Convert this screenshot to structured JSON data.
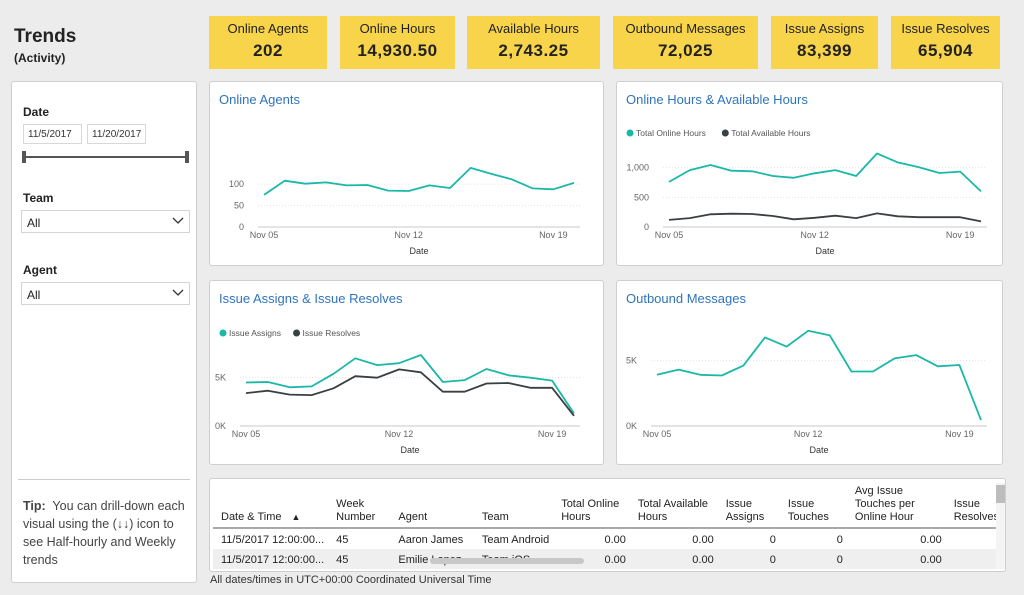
{
  "header": {
    "title": "Trends",
    "subtitle": "(Activity)"
  },
  "kpis": [
    {
      "label": "Online Agents",
      "value": "202"
    },
    {
      "label": "Online Hours",
      "value": "14,930.50"
    },
    {
      "label": "Available Hours",
      "value": "2,743.25"
    },
    {
      "label": "Outbound Messages",
      "value": "72,025"
    },
    {
      "label": "Issue Assigns",
      "value": "83,399"
    },
    {
      "label": "Issue Resolves",
      "value": "65,904"
    }
  ],
  "slicers": {
    "date_label": "Date",
    "date_start": "11/5/2017",
    "date_end": "11/20/2017",
    "team_label": "Team",
    "team_value": "All",
    "agent_label": "Agent",
    "agent_value": "All",
    "tip_bold": "Tip:",
    "tip_text": "You can drill-down each visual using the (↓↓) icon to see Half-hourly and Weekly trends"
  },
  "colors": {
    "teal": "#1ab8a7",
    "dark": "#3a3f42",
    "kpi": "#f8d44a",
    "title_blue": "#2f74bb"
  },
  "chart_data": [
    {
      "id": "online-agents",
      "type": "line",
      "title": "Online Agents",
      "xlabel": "Date",
      "x_ticks": [
        "Nov 05",
        "Nov 12",
        "Nov 19"
      ],
      "y_ticks": [
        "0",
        "50",
        "100"
      ],
      "ylim": [
        0,
        140
      ],
      "x": [
        "Nov 05",
        "Nov 06",
        "Nov 07",
        "Nov 08",
        "Nov 09",
        "Nov 10",
        "Nov 11",
        "Nov 12",
        "Nov 13",
        "Nov 14",
        "Nov 15",
        "Nov 16",
        "Nov 17",
        "Nov 18",
        "Nov 19",
        "Nov 20"
      ],
      "series": [
        {
          "name": "Online Agents",
          "color": "#1ab8a7",
          "values": [
            75,
            108,
            101,
            104,
            97,
            98,
            85,
            84,
            97,
            91,
            138,
            124,
            111,
            90,
            88,
            103
          ]
        }
      ]
    },
    {
      "id": "online-available-hours",
      "type": "line",
      "title": "Online Hours & Available Hours",
      "xlabel": "Date",
      "x_ticks": [
        "Nov 05",
        "Nov 12",
        "Nov 19"
      ],
      "y_ticks": [
        "0",
        "500",
        "1,000"
      ],
      "ylim": [
        0,
        1400
      ],
      "legend": [
        "Total Online Hours",
        "Total Available Hours"
      ],
      "x": [
        "Nov 05",
        "Nov 06",
        "Nov 07",
        "Nov 08",
        "Nov 09",
        "Nov 10",
        "Nov 11",
        "Nov 12",
        "Nov 13",
        "Nov 14",
        "Nov 15",
        "Nov 16",
        "Nov 17",
        "Nov 18",
        "Nov 19",
        "Nov 20"
      ],
      "series": [
        {
          "name": "Total Online Hours",
          "color": "#1ab8a7",
          "values": [
            760,
            960,
            1045,
            950,
            940,
            860,
            830,
            905,
            960,
            860,
            1240,
            1090,
            1010,
            910,
            935,
            600
          ]
        },
        {
          "name": "Total Available Hours",
          "color": "#3a3f42",
          "values": [
            120,
            150,
            215,
            225,
            220,
            185,
            130,
            155,
            190,
            150,
            230,
            180,
            165,
            165,
            165,
            95
          ]
        }
      ]
    },
    {
      "id": "issue-assigns-resolves",
      "type": "line",
      "title": "Issue Assigns & Issue Resolves",
      "xlabel": "Date",
      "x_ticks": [
        "Nov 05",
        "Nov 12",
        "Nov 19"
      ],
      "y_ticks": [
        "0K",
        "5K"
      ],
      "ylim": [
        0,
        9000
      ],
      "legend": [
        "Issue Assigns",
        "Issue Resolves"
      ],
      "x": [
        "Nov 05",
        "Nov 06",
        "Nov 07",
        "Nov 08",
        "Nov 09",
        "Nov 10",
        "Nov 11",
        "Nov 12",
        "Nov 13",
        "Nov 14",
        "Nov 15",
        "Nov 16",
        "Nov 17",
        "Nov 18",
        "Nov 19",
        "Nov 20"
      ],
      "series": [
        {
          "name": "Issue Assigns",
          "color": "#1ab8a7",
          "values": [
            4500,
            4550,
            4000,
            4100,
            5400,
            7000,
            6300,
            6500,
            7350,
            4550,
            4750,
            5900,
            5250,
            5000,
            4700,
            1300
          ]
        },
        {
          "name": "Issue Resolves",
          "color": "#3a3f42",
          "values": [
            3400,
            3650,
            3250,
            3200,
            3900,
            5150,
            5000,
            5850,
            5550,
            3550,
            3550,
            4400,
            4450,
            3950,
            3950,
            1050
          ]
        }
      ]
    },
    {
      "id": "outbound-messages",
      "type": "line",
      "title": "Outbound Messages",
      "xlabel": "Date",
      "x_ticks": [
        "Nov 05",
        "Nov 12",
        "Nov 19"
      ],
      "y_ticks": [
        "0K",
        "5K"
      ],
      "ylim": [
        0,
        8000
      ],
      "x": [
        "Nov 05",
        "Nov 06",
        "Nov 07",
        "Nov 08",
        "Nov 09",
        "Nov 10",
        "Nov 11",
        "Nov 12",
        "Nov 13",
        "Nov 14",
        "Nov 15",
        "Nov 16",
        "Nov 17",
        "Nov 18",
        "Nov 19",
        "Nov 20"
      ],
      "series": [
        {
          "name": "Outbound Messages",
          "color": "#1ab8a7",
          "values": [
            3900,
            4300,
            3900,
            3850,
            4600,
            6750,
            6050,
            7250,
            6900,
            4150,
            4150,
            5150,
            5400,
            4550,
            4650,
            450
          ]
        }
      ]
    }
  ],
  "table": {
    "columns": [
      "Date & Time",
      "Week Number",
      "Agent",
      "Team",
      "Total Online Hours",
      "Total Available Hours",
      "Issue Assigns",
      "Issue Touches",
      "Avg Issue Touches per Online Hour",
      "Issue Resolves"
    ],
    "rows": [
      [
        "11/5/2017 12:00:00...",
        "45",
        "Aaron James",
        "Team Android",
        "0.00",
        "0.00",
        "0",
        "0",
        "0.00",
        ""
      ],
      [
        "11/5/2017 12:00:00...",
        "45",
        "Emilie Lopez",
        "Team iOS",
        "0.00",
        "0.00",
        "0",
        "0",
        "0.00",
        ""
      ]
    ]
  },
  "footer": {
    "note": "All dates/times in UTC+00:00 Coordinated Universal Time"
  }
}
